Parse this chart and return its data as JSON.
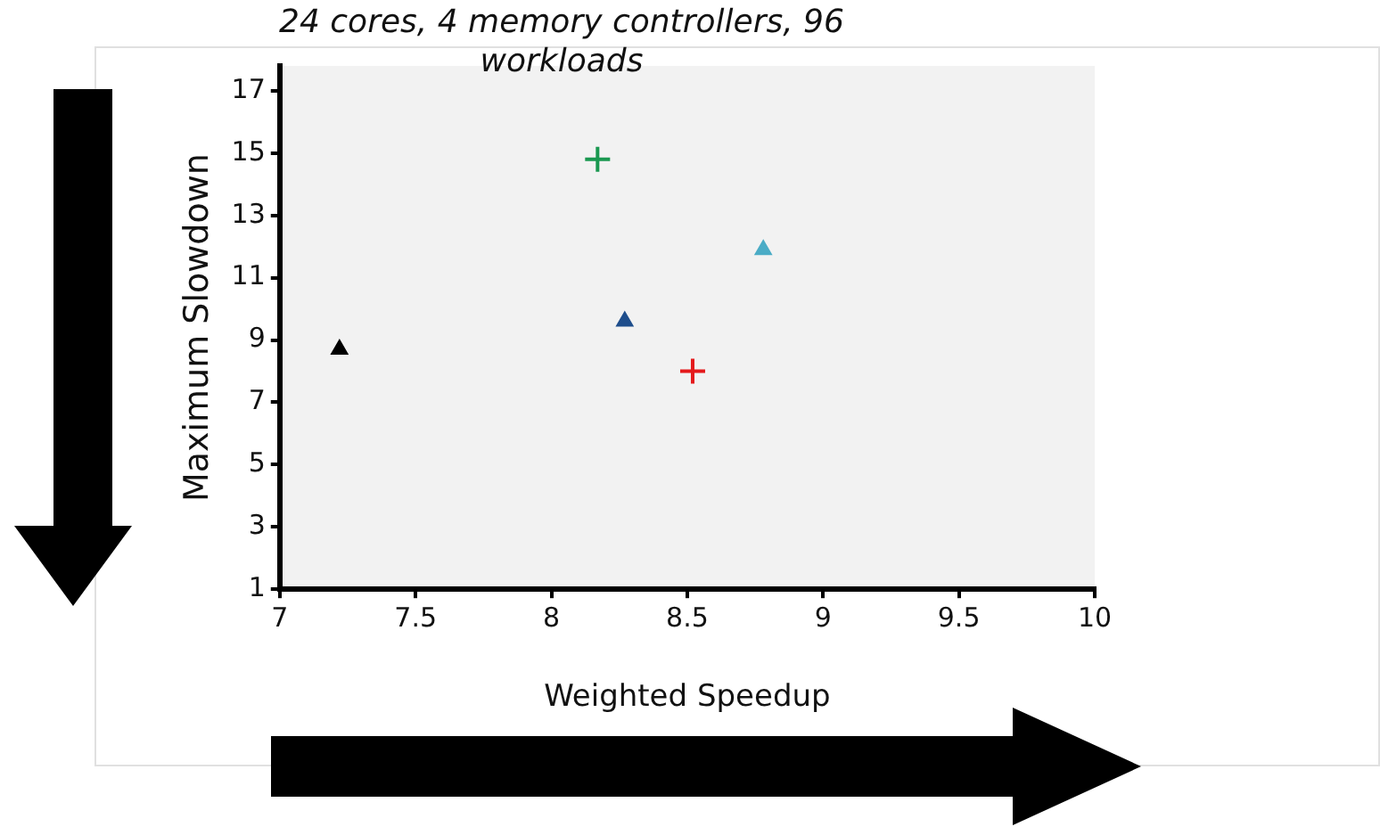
{
  "chart_data": {
    "type": "scatter",
    "title": "24 cores, 4 memory controllers, 96 workloads",
    "xlabel": "Weighted Speedup",
    "ylabel": "Maximum Slowdown",
    "xlim": [
      7,
      10
    ],
    "xticks": [
      7,
      7.5,
      8,
      8.5,
      9,
      9.5,
      10
    ],
    "ylim": [
      1,
      17.8
    ],
    "yticks": [
      1,
      3,
      5,
      7,
      9,
      11,
      13,
      15,
      17
    ],
    "grid": false,
    "legend": false,
    "series": [
      {
        "color": "#000000",
        "marker": "triangle",
        "x": [
          7.22
        ],
        "values": [
          8.7
        ]
      },
      {
        "color": "#1a9850",
        "marker": "cross",
        "x": [
          8.17
        ],
        "values": [
          14.8
        ]
      },
      {
        "color": "#1f4e8c",
        "marker": "triangle",
        "x": [
          8.27
        ],
        "values": [
          9.6
        ]
      },
      {
        "color": "#e41a1c",
        "marker": "cross",
        "x": [
          8.52
        ],
        "values": [
          8.0
        ]
      },
      {
        "color": "#4bacc6",
        "marker": "triangle",
        "x": [
          8.78
        ],
        "values": [
          11.9
        ]
      }
    ]
  }
}
